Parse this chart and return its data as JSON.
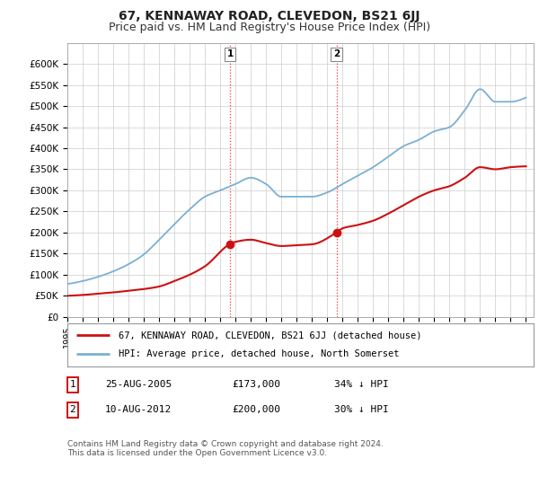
{
  "title": "67, KENNAWAY ROAD, CLEVEDON, BS21 6JJ",
  "subtitle": "Price paid vs. HM Land Registry's House Price Index (HPI)",
  "ylim": [
    0,
    650000
  ],
  "yticks": [
    0,
    50000,
    100000,
    150000,
    200000,
    250000,
    300000,
    350000,
    400000,
    450000,
    500000,
    550000,
    600000
  ],
  "xlim_start": 1995.0,
  "xlim_end": 2025.5,
  "hpi_color": "#7ab0d4",
  "price_color": "#cc1111",
  "background_color": "#ffffff",
  "grid_color": "#cccccc",
  "sale1_x": 2005.648,
  "sale1_y": 173000,
  "sale1_label": "1",
  "sale2_x": 2012.607,
  "sale2_y": 200000,
  "sale2_label": "2",
  "legend_line1": "67, KENNAWAY ROAD, CLEVEDON, BS21 6JJ (detached house)",
  "legend_line2": "HPI: Average price, detached house, North Somerset",
  "table_row1": [
    "1",
    "25-AUG-2005",
    "£173,000",
    "34% ↓ HPI"
  ],
  "table_row2": [
    "2",
    "10-AUG-2012",
    "£200,000",
    "30% ↓ HPI"
  ],
  "footnote": "Contains HM Land Registry data © Crown copyright and database right 2024.\nThis data is licensed under the Open Government Licence v3.0.",
  "title_fontsize": 10,
  "subtitle_fontsize": 9,
  "tick_fontsize": 7.5,
  "hpi_points_x": [
    1995,
    1996,
    1997,
    1998,
    1999,
    2000,
    2001,
    2002,
    2003,
    2004,
    2005,
    2006,
    2007,
    2008,
    2009,
    2010,
    2011,
    2012,
    2013,
    2014,
    2015,
    2016,
    2017,
    2018,
    2019,
    2020,
    2021,
    2022,
    2023,
    2024,
    2025
  ],
  "hpi_points_y": [
    78000,
    85000,
    95000,
    108000,
    125000,
    148000,
    183000,
    220000,
    255000,
    285000,
    300000,
    315000,
    330000,
    315000,
    285000,
    285000,
    285000,
    295000,
    315000,
    335000,
    355000,
    380000,
    405000,
    420000,
    440000,
    450000,
    490000,
    540000,
    510000,
    510000,
    520000
  ],
  "price_points_x": [
    1995,
    1996,
    1997,
    1998,
    1999,
    2000,
    2001,
    2002,
    2003,
    2004,
    2005.648,
    2006,
    2007,
    2008,
    2009,
    2010,
    2011,
    2012.607,
    2013,
    2014,
    2015,
    2016,
    2017,
    2018,
    2019,
    2020,
    2021,
    2022,
    2023,
    2024,
    2025
  ],
  "price_points_y": [
    50000,
    52000,
    55000,
    58000,
    62000,
    66000,
    72000,
    85000,
    100000,
    120000,
    173000,
    178000,
    183000,
    175000,
    168000,
    170000,
    172000,
    200000,
    210000,
    218000,
    228000,
    245000,
    265000,
    285000,
    300000,
    310000,
    330000,
    355000,
    350000,
    355000,
    357000
  ]
}
